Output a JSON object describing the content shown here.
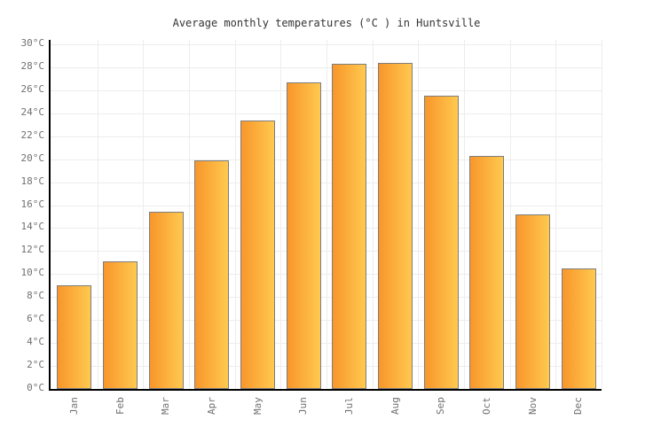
{
  "chart_data": {
    "type": "bar",
    "title": "Average monthly temperatures (°C ) in Huntsville",
    "categories": [
      "Jan",
      "Feb",
      "Mar",
      "Apr",
      "May",
      "Jun",
      "Jul",
      "Aug",
      "Sep",
      "Oct",
      "Nov",
      "Dec"
    ],
    "values": [
      9.0,
      11.1,
      15.4,
      19.9,
      23.4,
      26.7,
      28.3,
      28.4,
      25.5,
      20.3,
      15.2,
      10.5
    ],
    "unit": "°C",
    "xlabel": "",
    "ylabel": "",
    "ylim": [
      0,
      30
    ],
    "ytick_step": 2,
    "yticks": [
      {
        "value": 0,
        "label": "0°C"
      },
      {
        "value": 2,
        "label": "2°C"
      },
      {
        "value": 4,
        "label": "4°C"
      },
      {
        "value": 6,
        "label": "6°C"
      },
      {
        "value": 8,
        "label": "8°C"
      },
      {
        "value": 10,
        "label": "10°C"
      },
      {
        "value": 12,
        "label": "12°C"
      },
      {
        "value": 14,
        "label": "14°C"
      },
      {
        "value": 16,
        "label": "16°C"
      },
      {
        "value": 18,
        "label": "18°C"
      },
      {
        "value": 20,
        "label": "20°C"
      },
      {
        "value": 22,
        "label": "22°C"
      },
      {
        "value": 24,
        "label": "24°C"
      },
      {
        "value": 26,
        "label": "26°C"
      },
      {
        "value": 28,
        "label": "28°C"
      },
      {
        "value": 30,
        "label": "30°C"
      }
    ],
    "grid": true,
    "legend": "none",
    "colors": {
      "background": "#ffffff",
      "title_color": "#333333",
      "axis_color": "#000000",
      "grid_color": "#ededed",
      "tick_label_color": "#707070",
      "bar_gradient_left": "#f8962c",
      "bar_gradient_right": "#ffc94f",
      "bar_border": "#7d7d7d"
    }
  }
}
